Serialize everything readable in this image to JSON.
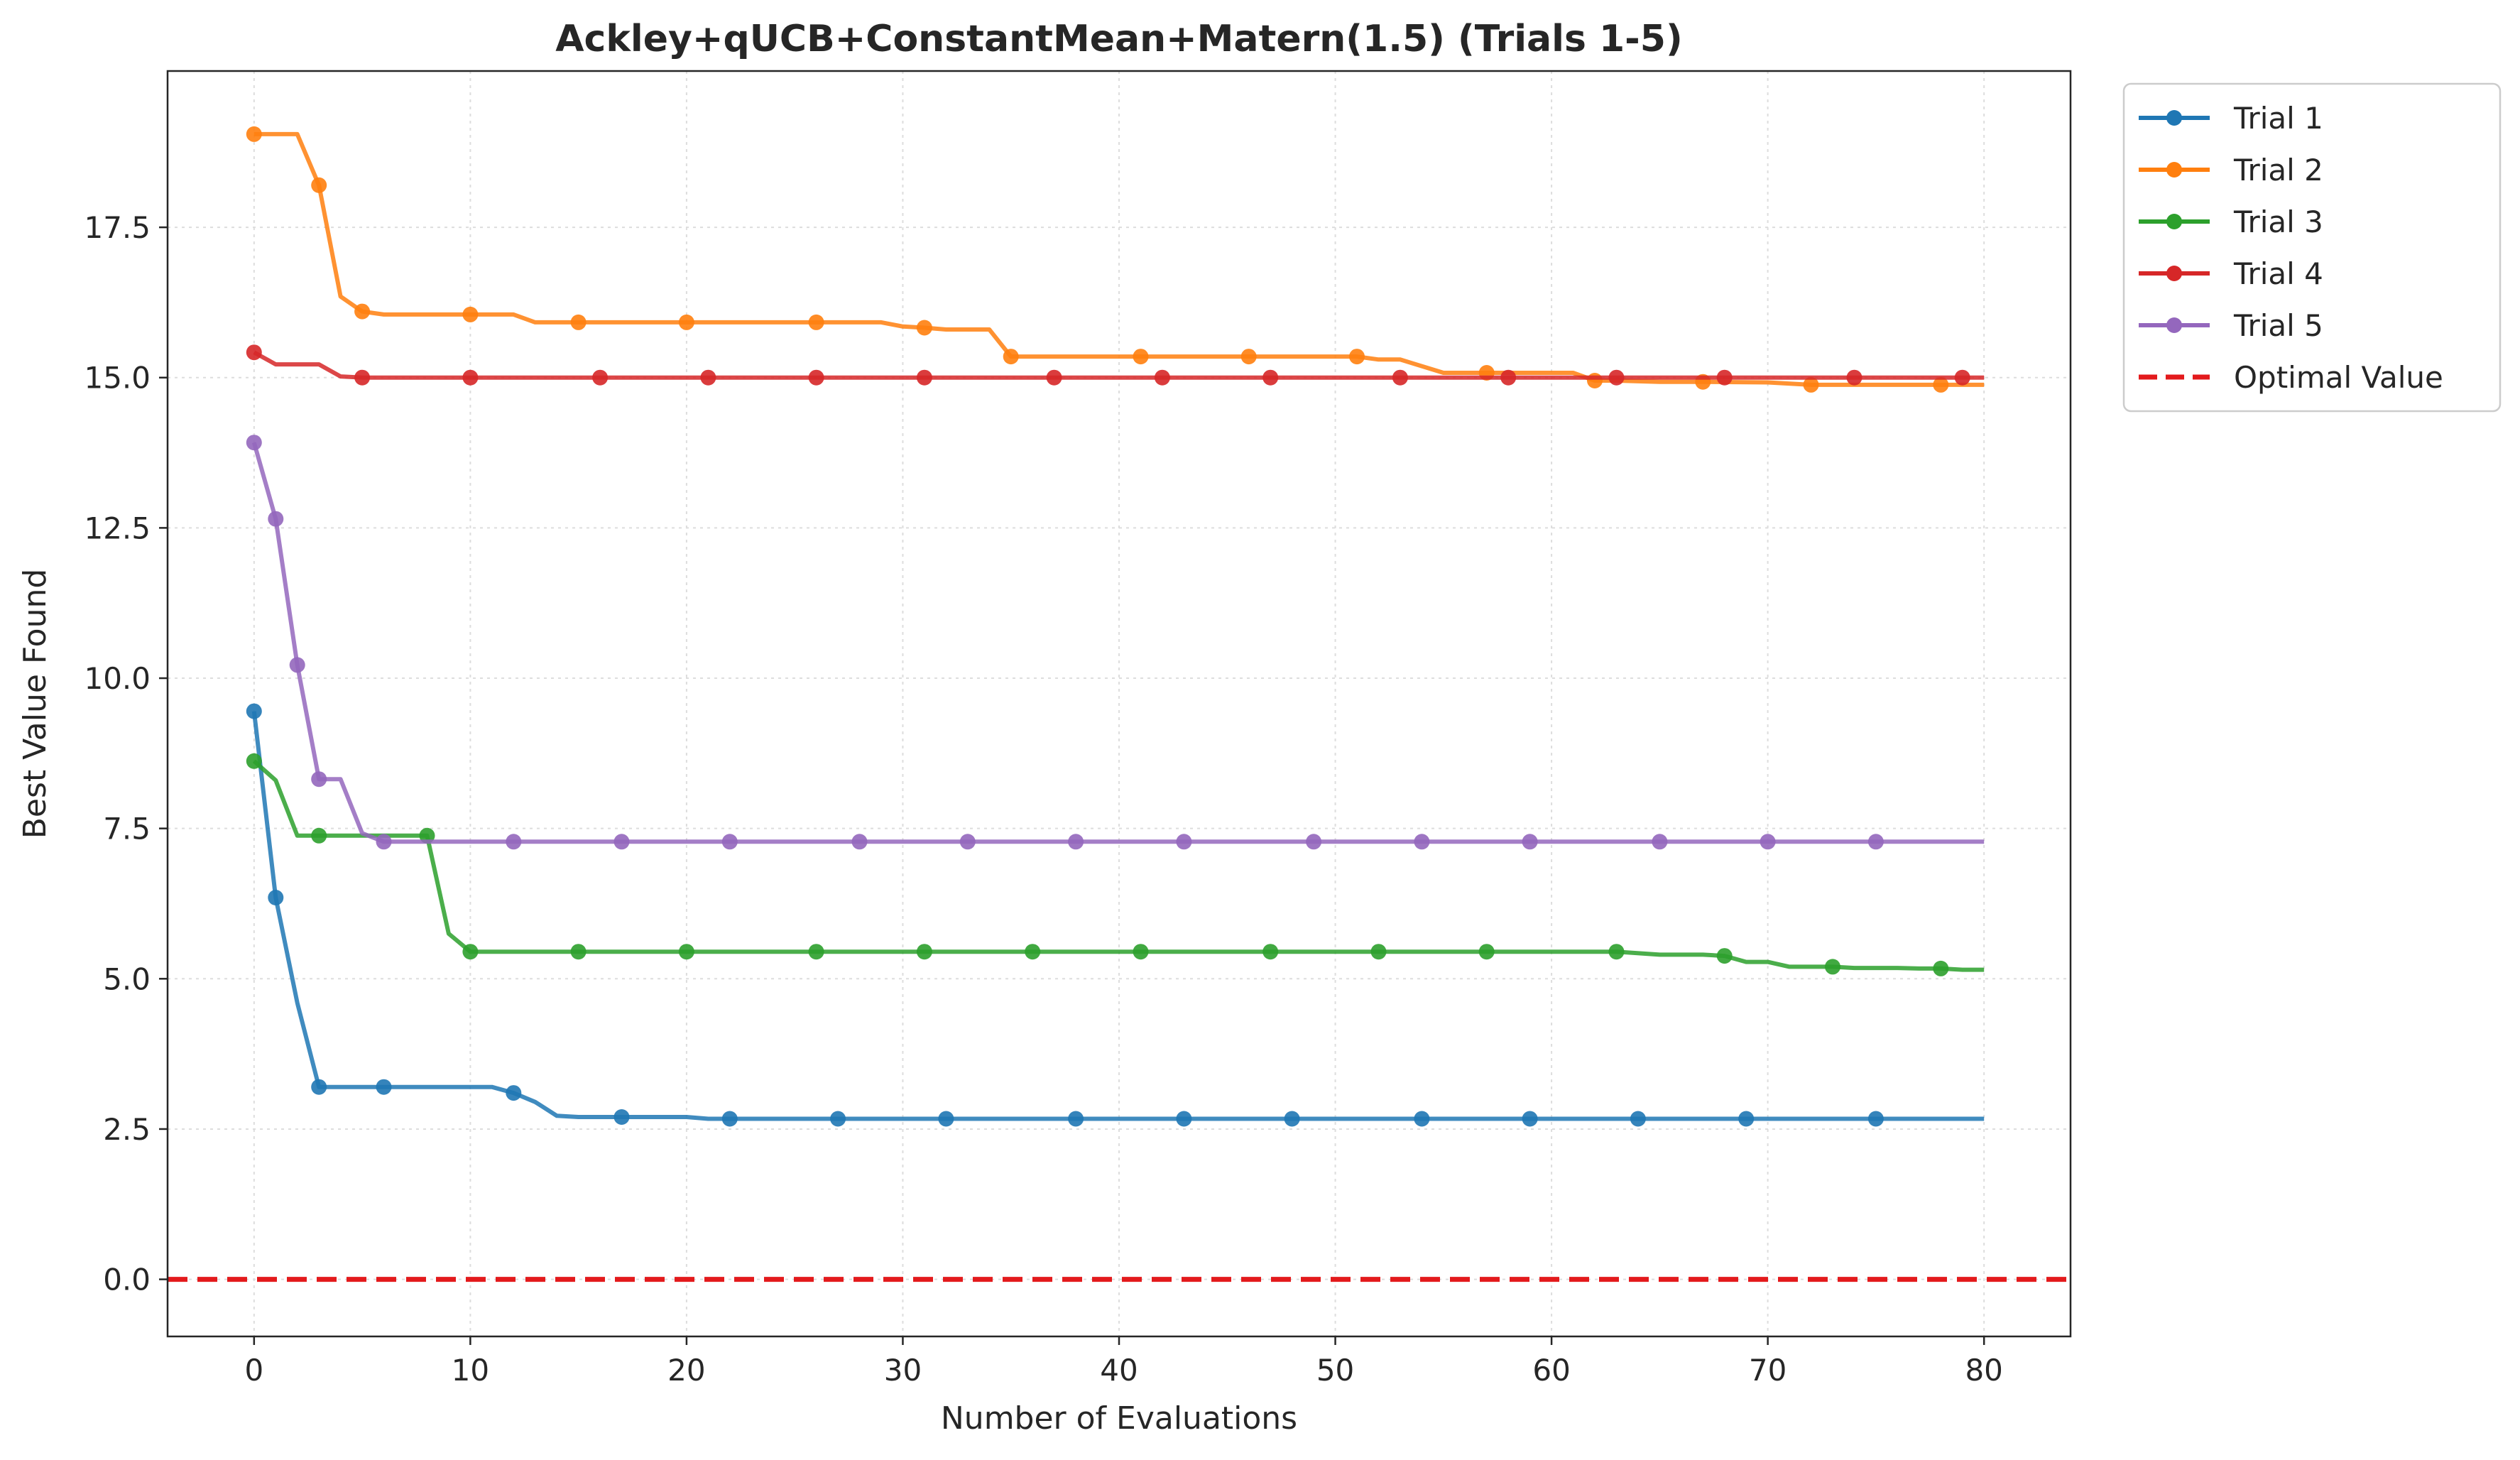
{
  "chart_data": {
    "type": "line",
    "title": "Ackley+qUCB+ConstantMean+Matern(1.5) (Trials 1-5)",
    "xlabel": "Number of Evaluations",
    "ylabel": "Best Value Found",
    "xlim": [
      -4,
      84
    ],
    "ylim": [
      -0.95,
      20.1
    ],
    "xticks": [
      0,
      10,
      20,
      30,
      40,
      50,
      60,
      70,
      80
    ],
    "yticks": [
      0.0,
      2.5,
      5.0,
      7.5,
      10.0,
      12.5,
      15.0,
      17.5
    ],
    "xtick_labels": [
      "0",
      "10",
      "20",
      "30",
      "40",
      "50",
      "60",
      "70",
      "80"
    ],
    "ytick_labels": [
      "0.0",
      "2.5",
      "5.0",
      "7.5",
      "10.0",
      "12.5",
      "15.0",
      "17.5"
    ],
    "grid": true,
    "legend_position": "outside-top-right",
    "series": [
      {
        "name": "Trial 1",
        "color": "#1f77b4",
        "points": [
          [
            0,
            9.45
          ],
          [
            1,
            6.35
          ],
          [
            2,
            4.6
          ],
          [
            3,
            3.2
          ],
          [
            4,
            3.2
          ],
          [
            5,
            3.2
          ],
          [
            6,
            3.2
          ],
          [
            7,
            3.2
          ],
          [
            8,
            3.2
          ],
          [
            9,
            3.2
          ],
          [
            10,
            3.2
          ],
          [
            11,
            3.2
          ],
          [
            12,
            3.1
          ],
          [
            13,
            2.95
          ],
          [
            14,
            2.72
          ],
          [
            15,
            2.7
          ],
          [
            16,
            2.7
          ],
          [
            17,
            2.7
          ],
          [
            18,
            2.7
          ],
          [
            19,
            2.7
          ],
          [
            20,
            2.7
          ],
          [
            21,
            2.67
          ],
          [
            22,
            2.67
          ],
          [
            80,
            2.67
          ]
        ],
        "markers": [
          [
            0,
            9.45
          ],
          [
            1,
            6.35
          ],
          [
            3,
            3.2
          ],
          [
            6,
            3.2
          ],
          [
            12,
            3.1
          ],
          [
            17,
            2.7
          ],
          [
            22,
            2.67
          ],
          [
            27,
            2.67
          ],
          [
            32,
            2.67
          ],
          [
            38,
            2.67
          ],
          [
            43,
            2.67
          ],
          [
            48,
            2.67
          ],
          [
            54,
            2.67
          ],
          [
            59,
            2.67
          ],
          [
            64,
            2.67
          ],
          [
            69,
            2.67
          ],
          [
            75,
            2.67
          ]
        ]
      },
      {
        "name": "Trial 2",
        "color": "#ff7f0e",
        "points": [
          [
            0,
            19.05
          ],
          [
            1,
            19.05
          ],
          [
            2,
            19.05
          ],
          [
            3,
            18.2
          ],
          [
            4,
            16.35
          ],
          [
            5,
            16.1
          ],
          [
            6,
            16.05
          ],
          [
            7,
            16.05
          ],
          [
            8,
            16.05
          ],
          [
            9,
            16.05
          ],
          [
            10,
            16.05
          ],
          [
            11,
            16.05
          ],
          [
            12,
            16.05
          ],
          [
            13,
            15.92
          ],
          [
            14,
            15.92
          ],
          [
            15,
            15.92
          ],
          [
            20,
            15.92
          ],
          [
            26,
            15.92
          ],
          [
            29,
            15.92
          ],
          [
            30,
            15.85
          ],
          [
            31,
            15.83
          ],
          [
            32,
            15.8
          ],
          [
            34,
            15.8
          ],
          [
            35,
            15.35
          ],
          [
            36,
            15.35
          ],
          [
            41,
            15.35
          ],
          [
            46,
            15.35
          ],
          [
            51,
            15.35
          ],
          [
            52,
            15.3
          ],
          [
            53,
            15.3
          ],
          [
            55,
            15.08
          ],
          [
            56,
            15.08
          ],
          [
            57,
            15.08
          ],
          [
            58,
            15.08
          ],
          [
            61,
            15.08
          ],
          [
            62,
            14.95
          ],
          [
            63,
            14.95
          ],
          [
            65,
            14.93
          ],
          [
            67,
            14.93
          ],
          [
            70,
            14.92
          ],
          [
            72,
            14.88
          ],
          [
            80,
            14.88
          ]
        ],
        "markers": [
          [
            0,
            19.05
          ],
          [
            3,
            18.2
          ],
          [
            5,
            16.1
          ],
          [
            10,
            16.05
          ],
          [
            15,
            15.92
          ],
          [
            20,
            15.92
          ],
          [
            26,
            15.92
          ],
          [
            31,
            15.83
          ],
          [
            35,
            15.35
          ],
          [
            41,
            15.35
          ],
          [
            46,
            15.35
          ],
          [
            51,
            15.35
          ],
          [
            57,
            15.08
          ],
          [
            62,
            14.95
          ],
          [
            67,
            14.93
          ],
          [
            72,
            14.88
          ],
          [
            78,
            14.88
          ]
        ]
      },
      {
        "name": "Trial 3",
        "color": "#2ca02c",
        "points": [
          [
            0,
            8.62
          ],
          [
            1,
            8.3
          ],
          [
            2,
            7.38
          ],
          [
            3,
            7.38
          ],
          [
            4,
            7.38
          ],
          [
            5,
            7.38
          ],
          [
            6,
            7.38
          ],
          [
            7,
            7.38
          ],
          [
            8,
            7.38
          ],
          [
            9,
            5.75
          ],
          [
            10,
            5.45
          ],
          [
            11,
            5.45
          ],
          [
            63,
            5.45
          ],
          [
            65,
            5.4
          ],
          [
            67,
            5.4
          ],
          [
            68,
            5.38
          ],
          [
            69,
            5.28
          ],
          [
            70,
            5.28
          ],
          [
            71,
            5.2
          ],
          [
            73,
            5.2
          ],
          [
            74,
            5.18
          ],
          [
            75,
            5.18
          ],
          [
            76,
            5.18
          ],
          [
            77,
            5.17
          ],
          [
            78,
            5.17
          ],
          [
            79,
            5.15
          ],
          [
            80,
            5.15
          ]
        ],
        "markers": [
          [
            0,
            8.62
          ],
          [
            3,
            7.38
          ],
          [
            8,
            7.38
          ],
          [
            10,
            5.45
          ],
          [
            15,
            5.45
          ],
          [
            20,
            5.45
          ],
          [
            26,
            5.45
          ],
          [
            31,
            5.45
          ],
          [
            36,
            5.45
          ],
          [
            41,
            5.45
          ],
          [
            47,
            5.45
          ],
          [
            52,
            5.45
          ],
          [
            57,
            5.45
          ],
          [
            63,
            5.45
          ],
          [
            68,
            5.38
          ],
          [
            73,
            5.2
          ],
          [
            78,
            5.17
          ]
        ]
      },
      {
        "name": "Trial 4",
        "color": "#d62728",
        "points": [
          [
            0,
            15.42
          ],
          [
            1,
            15.22
          ],
          [
            2,
            15.22
          ],
          [
            3,
            15.22
          ],
          [
            4,
            15.02
          ],
          [
            5,
            15.0
          ],
          [
            80,
            15.0
          ]
        ],
        "markers": [
          [
            0,
            15.42
          ],
          [
            5,
            15.0
          ],
          [
            10,
            15.0
          ],
          [
            16,
            15.0
          ],
          [
            21,
            15.0
          ],
          [
            26,
            15.0
          ],
          [
            31,
            15.0
          ],
          [
            37,
            15.0
          ],
          [
            42,
            15.0
          ],
          [
            47,
            15.0
          ],
          [
            53,
            15.0
          ],
          [
            58,
            15.0
          ],
          [
            63,
            15.0
          ],
          [
            68,
            15.0
          ],
          [
            74,
            15.0
          ],
          [
            79,
            15.0
          ]
        ]
      },
      {
        "name": "Trial 5",
        "color": "#9467bd",
        "points": [
          [
            0,
            13.92
          ],
          [
            1,
            12.65
          ],
          [
            2,
            10.22
          ],
          [
            3,
            8.32
          ],
          [
            4,
            8.32
          ],
          [
            5,
            7.42
          ],
          [
            6,
            7.28
          ],
          [
            80,
            7.28
          ]
        ],
        "markers": [
          [
            0,
            13.92
          ],
          [
            1,
            12.65
          ],
          [
            2,
            10.22
          ],
          [
            3,
            8.32
          ],
          [
            6,
            7.28
          ],
          [
            12,
            7.28
          ],
          [
            17,
            7.28
          ],
          [
            22,
            7.28
          ],
          [
            28,
            7.28
          ],
          [
            33,
            7.28
          ],
          [
            38,
            7.28
          ],
          [
            43,
            7.28
          ],
          [
            49,
            7.28
          ],
          [
            54,
            7.28
          ],
          [
            59,
            7.28
          ],
          [
            65,
            7.28
          ],
          [
            70,
            7.28
          ],
          [
            75,
            7.28
          ]
        ]
      }
    ],
    "reference_line": {
      "name": "Optimal Value",
      "y": 0,
      "color": "#e31a1c",
      "style": "dashed"
    }
  }
}
